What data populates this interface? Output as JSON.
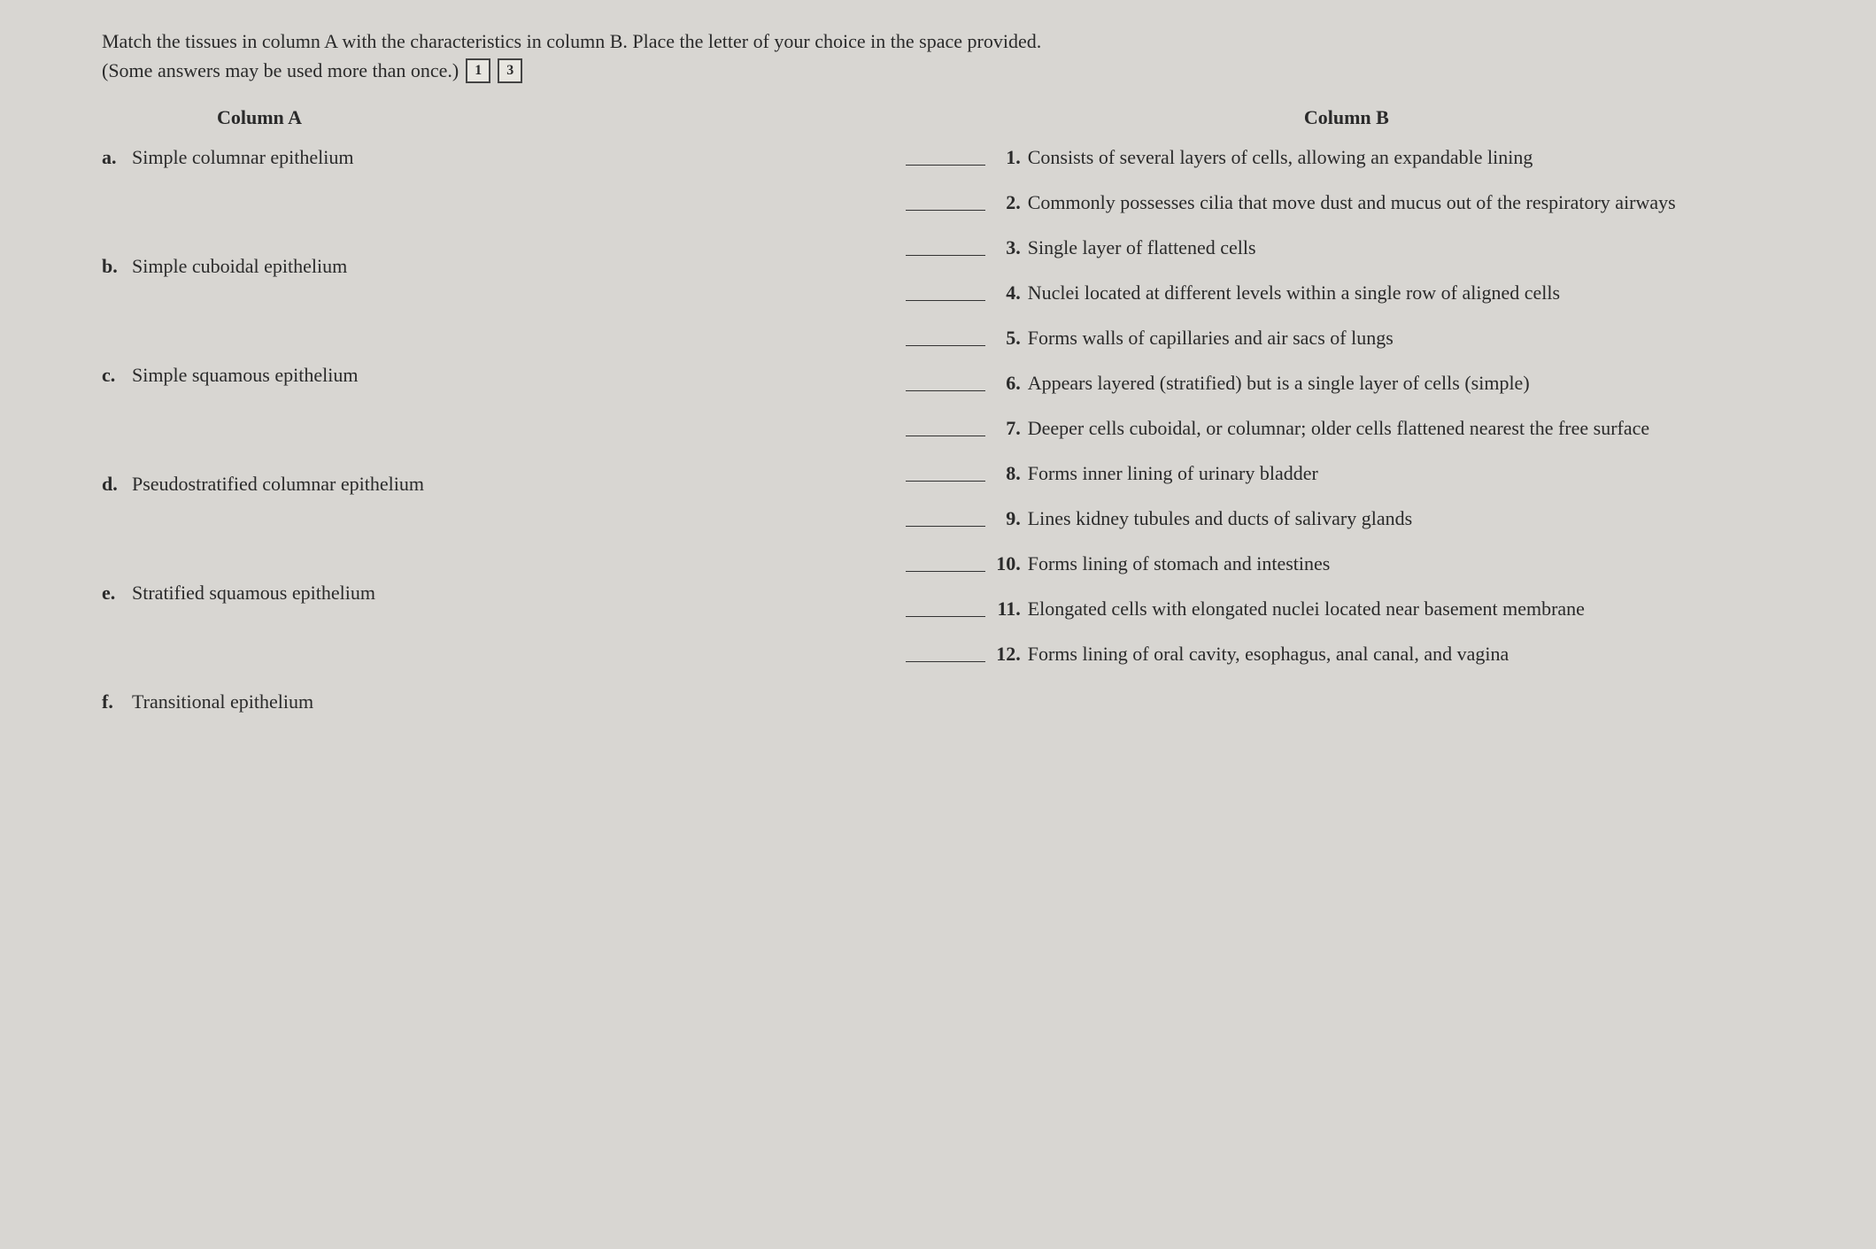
{
  "instructions": {
    "line1": "Match the tissues in column A with the characteristics in column B. Place the letter of your choice in the space provided.",
    "line2": "(Some answers may be used more than once.)",
    "icon1": "1",
    "icon2": "3"
  },
  "columnA": {
    "header": "Column A",
    "items": [
      {
        "letter": "a.",
        "text": "Simple columnar epithelium"
      },
      {
        "letter": "b.",
        "text": "Simple cuboidal epithelium"
      },
      {
        "letter": "c.",
        "text": "Simple squamous epithelium"
      },
      {
        "letter": "d.",
        "text": "Pseudostratified columnar epithelium"
      },
      {
        "letter": "e.",
        "text": "Stratified squamous epithelium"
      },
      {
        "letter": "f.",
        "text": "Transitional epithelium"
      }
    ]
  },
  "columnB": {
    "header": "Column B",
    "items": [
      {
        "num": "1.",
        "text": "Consists of several layers of cells, allowing an expandable lining"
      },
      {
        "num": "2.",
        "text": "Commonly possesses cilia that move dust and mucus out of the respiratory airways"
      },
      {
        "num": "3.",
        "text": "Single layer of flattened cells"
      },
      {
        "num": "4.",
        "text": "Nuclei located at different levels within a single row of aligned cells"
      },
      {
        "num": "5.",
        "text": "Forms walls of capillaries and air sacs of lungs"
      },
      {
        "num": "6.",
        "text": "Appears layered (stratified) but is a single layer of cells (simple)"
      },
      {
        "num": "7.",
        "text": "Deeper cells cuboidal, or columnar; older cells flattened nearest the free surface"
      },
      {
        "num": "8.",
        "text": "Forms inner lining of urinary bladder"
      },
      {
        "num": "9.",
        "text": "Lines kidney tubules and ducts of salivary glands"
      },
      {
        "num": "10.",
        "text": "Forms lining of stomach and intestines"
      },
      {
        "num": "11.",
        "text": "Elongated cells with elongated nuclei located near basement membrane"
      },
      {
        "num": "12.",
        "text": "Forms lining of oral cavity, esophagus, anal canal, and vagina"
      }
    ]
  },
  "styling": {
    "background_color": "#d8d6d2",
    "text_color": "#2a2a2a",
    "font_family": "Times New Roman",
    "base_font_size": 22,
    "blank_line_width": 90,
    "blank_border_color": "#333",
    "icon_border_color": "#444",
    "icon_bg": "#e8e6e0"
  }
}
